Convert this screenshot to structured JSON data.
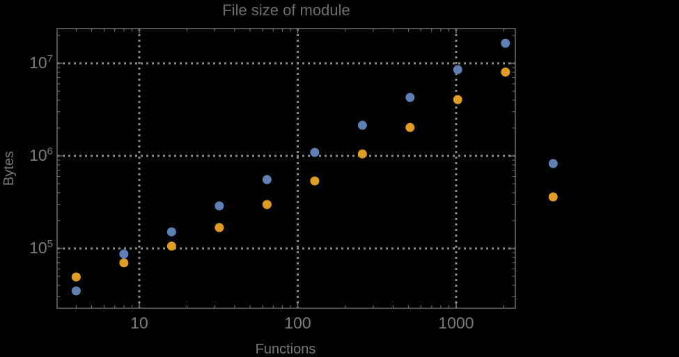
{
  "page": {
    "background_color": "#000000"
  },
  "chart_data": {
    "type": "scatter",
    "title": "File size of module",
    "xlabel": "Functions",
    "ylabel": "Bytes",
    "xscale": "log",
    "yscale": "log",
    "xlim": [
      3.03,
      2364
    ],
    "ylim": [
      22560,
      23760000
    ],
    "grid": "dotted gridlines at powers of 10, both axes",
    "legend_position": "none",
    "x_ticks": {
      "major": [
        10,
        100,
        1000
      ],
      "labels": [
        "10",
        "100",
        "1000"
      ]
    },
    "y_ticks": {
      "major": [
        100000,
        1000000,
        10000000
      ],
      "labels": [
        "10^5",
        "10^6",
        "10^7"
      ]
    },
    "series": [
      {
        "name": "blue",
        "color": "#5e81b5",
        "points": [
          [
            4,
            34800
          ],
          [
            8,
            87000
          ],
          [
            16,
            151000
          ],
          [
            32,
            288000
          ],
          [
            64,
            555000
          ],
          [
            128,
            1090000
          ],
          [
            256,
            2140000
          ],
          [
            512,
            4280000
          ],
          [
            1024,
            8560000
          ],
          [
            2048,
            16500000
          ],
          [
            4096,
            826000
          ]
        ]
      },
      {
        "name": "orange",
        "color": "#e19c24",
        "points": [
          [
            4,
            49200
          ],
          [
            8,
            69900
          ],
          [
            16,
            106000
          ],
          [
            32,
            168000
          ],
          [
            64,
            298000
          ],
          [
            128,
            536000
          ],
          [
            256,
            1050000
          ],
          [
            512,
            2030000
          ],
          [
            1024,
            4060000
          ],
          [
            2048,
            8050000
          ],
          [
            4096,
            360000
          ]
        ]
      }
    ],
    "colors": {
      "background": "#000000",
      "frame": "#6f6f6f",
      "gridline": "#8c8c8c",
      "title_text": "#6e6e6e",
      "tick_label_text": "#7d7d7d",
      "axis_label_text": "#787878"
    }
  }
}
